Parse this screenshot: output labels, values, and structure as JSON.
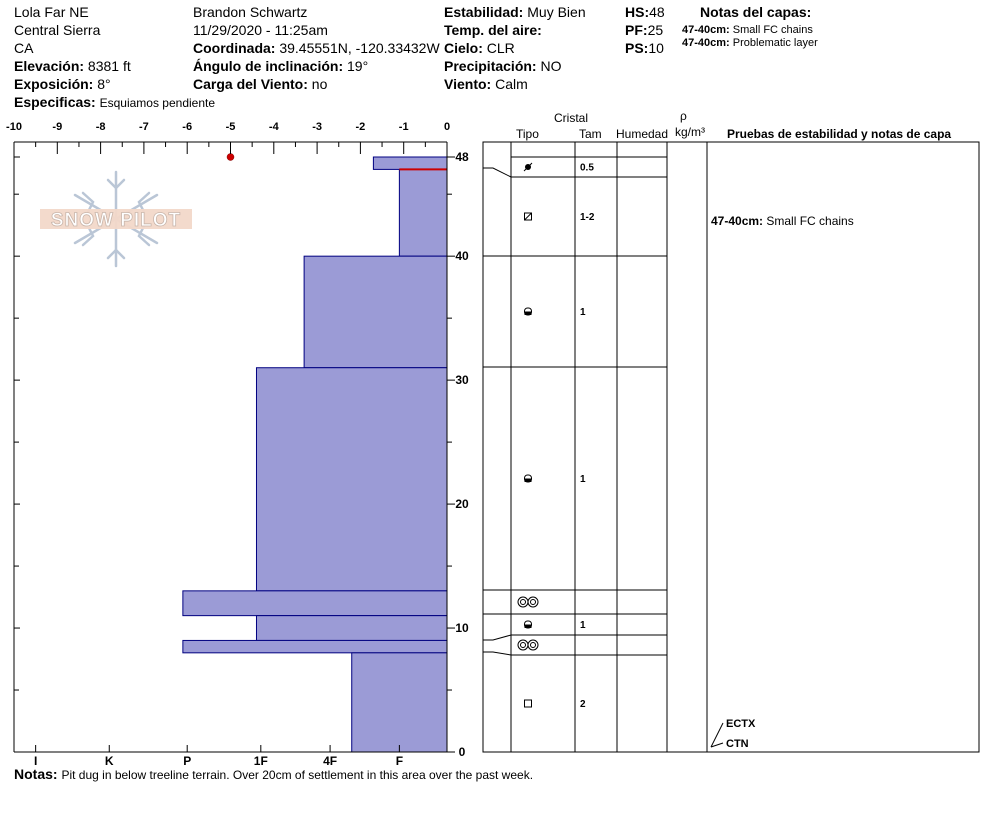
{
  "header": {
    "location": "Lola Far NE",
    "range": "Central Sierra",
    "state": "CA",
    "elevation_label": "Elevación:",
    "elevation_value": "8381 ft",
    "aspect_label": "Exposición:",
    "aspect_value": "8°",
    "specifics_label": "Especificas:",
    "specifics_value": "Esquiamos pendiente",
    "observer": "Brandon Schwartz",
    "datetime": "11/29/2020 - 11:25am",
    "coords_label": "Coordinada:",
    "coords_value": "39.45551N, -120.33432W",
    "incline_label": "Ángulo de inclinación:",
    "incline_value": "19°",
    "wind_load_label": "Carga del Viento:",
    "wind_load_value": "no",
    "stability_label": "Estabilidad:",
    "stability_value": "Muy Bien",
    "air_temp_label": "Temp. del aire:",
    "air_temp_value": "",
    "sky_label": "Cielo:",
    "sky_value": "CLR",
    "precip_label": "Precipitación:",
    "precip_value": "NO",
    "wind_label": "Viento:",
    "wind_value": "Calm",
    "hs_label": "HS:",
    "hs_value": "48",
    "pf_label": "PF:",
    "pf_value": "25",
    "ps_label": "PS:",
    "ps_value": "10",
    "layer_notes_title": "Notas del capas:",
    "layer_notes": [
      {
        "range": "47-40cm:",
        "text": "Small FC chains"
      },
      {
        "range": "47-40cm:",
        "text": "Problematic layer"
      }
    ]
  },
  "logo": {
    "text": "SNOW PILOT"
  },
  "table_headers": {
    "crystal": "Cristal",
    "type": "Tipo",
    "size": "Tam",
    "moisture": "Humedad",
    "rho": "ρ",
    "density_unit": "kg/m³",
    "tests": "Pruebas de estabilidad y notas de capa"
  },
  "footer": {
    "notes_label": "Notas:",
    "notes_text": "Pit dug in below treeline terrain. Over 20cm of settlement in this area over the past week."
  },
  "chart_data": {
    "type": "snow_profile",
    "temp_axis": {
      "min": -10,
      "max": 0,
      "ticks": [
        "-10",
        "-9",
        "-8",
        "-7",
        "-6",
        "-5",
        "-4",
        "-3",
        "-2",
        "-1",
        "0"
      ]
    },
    "depth_axis": {
      "min": 0,
      "max": 48,
      "tick_values": [
        0,
        10,
        20,
        30,
        40,
        48
      ],
      "ticks": [
        "0",
        "10",
        "20",
        "30",
        "40",
        "48"
      ]
    },
    "hardness_ticks": [
      "I",
      "K",
      "P",
      "1F",
      "4F",
      "F"
    ],
    "hardness_tick_temps": [
      -9.5,
      -7.8,
      -6,
      -4.3,
      -2.7,
      -1.1
    ],
    "temperature_points": [
      {
        "depth": 48,
        "temp": -5
      }
    ],
    "layers": [
      {
        "top": 48,
        "bottom": 47,
        "hardness_temp": -1.7,
        "grain": "decomposing",
        "size": "0.5"
      },
      {
        "top": 47,
        "bottom": 40,
        "hardness_temp": -1.1,
        "grain": "faceted_rounded",
        "size": "1-2"
      },
      {
        "top": 40,
        "bottom": 31,
        "hardness_temp": -3.3,
        "grain": "rounded_faceting",
        "size": "1"
      },
      {
        "top": 31,
        "bottom": 13,
        "hardness_temp": -4.4,
        "grain": "rounded_faceting",
        "size": "1"
      },
      {
        "top": 13,
        "bottom": 11,
        "hardness_temp": -6.1,
        "grain": "melt_forms",
        "size": ""
      },
      {
        "top": 11,
        "bottom": 9,
        "hardness_temp": -4.4,
        "grain": "rounded_faceting",
        "size": "1"
      },
      {
        "top": 9,
        "bottom": 8,
        "hardness_temp": -6.1,
        "grain": "melt_forms",
        "size": ""
      },
      {
        "top": 8,
        "bottom": 0,
        "hardness_temp": -2.2,
        "grain": "faceted",
        "size": "2"
      }
    ],
    "problem_layer_depth": 47,
    "layer_note": {
      "depth": 43,
      "label": "47-40cm:",
      "text": "Small FC chains"
    },
    "stability_tests": [
      {
        "label": "ECTX",
        "depth": 2
      },
      {
        "label": "CTN",
        "depth": 0
      }
    ],
    "colors": {
      "bar_fill": "#9b9bd6",
      "bar_stroke": "#000080",
      "problem_line": "#cc0000",
      "temp_point": "#cc0000"
    }
  }
}
